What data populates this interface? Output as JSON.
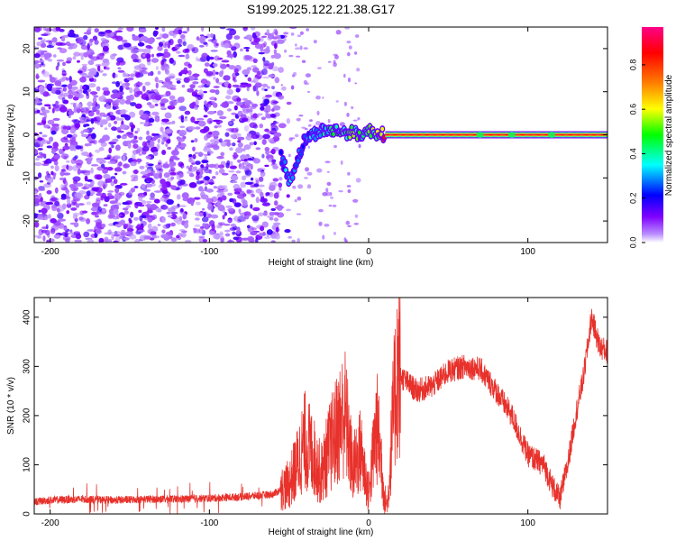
{
  "title": "S199.2025.122.21.38.G17",
  "chart_data": [
    {
      "type": "heatmap",
      "xlabel": "Height of straight line (km)",
      "ylabel": "Frequency (Hz)",
      "xlim": [
        -210,
        150
      ],
      "ylim": [
        -25,
        25
      ],
      "xticks": [
        -200,
        -100,
        0,
        100
      ],
      "yticks": [
        -20,
        -10,
        0,
        10,
        20
      ],
      "colorbar": {
        "label": "Normalized spectral amplitude",
        "range": [
          0.0,
          0.97
        ],
        "ticks": [
          "0.0",
          "0.2",
          "0.4",
          "0.6",
          "0.8"
        ],
        "tick_values": [
          0.0,
          0.2,
          0.4,
          0.6,
          0.8
        ],
        "colormap": [
          "#ffffff",
          "#7f00ff",
          "#0000ff",
          "#00ffff",
          "#00ff00",
          "#ffff00",
          "#ff7f00",
          "#ff0000",
          "#ff00aa"
        ]
      },
      "noise_region_x": [
        -210,
        -55
      ],
      "signal_track": {
        "x": [
          -55,
          -52,
          -50,
          -48,
          -45,
          -42,
          -40,
          -35,
          -30,
          -25,
          -20,
          -15,
          -10,
          -5,
          0,
          5,
          10,
          20,
          40,
          60,
          80,
          100,
          120,
          150
        ],
        "frequency": [
          -5,
          -8,
          -11,
          -9,
          -6,
          -3,
          -1,
          0,
          1,
          1,
          1,
          0.5,
          0.5,
          0,
          1,
          0.5,
          0,
          0,
          0,
          0,
          0,
          0,
          0,
          0
        ],
        "amplitude": [
          0.3,
          0.35,
          0.35,
          0.3,
          0.3,
          0.3,
          0.3,
          0.35,
          0.4,
          0.45,
          0.5,
          0.55,
          0.55,
          0.5,
          0.55,
          0.6,
          0.9,
          0.9,
          0.9,
          0.9,
          0.9,
          0.9,
          0.9,
          0.9
        ]
      }
    },
    {
      "type": "line",
      "xlabel": "Height of straight line (km)",
      "ylabel": "SNR (10 * v/v)",
      "xlim": [
        -210,
        150
      ],
      "ylim": [
        0,
        440
      ],
      "xticks": [
        -200,
        -100,
        0,
        100
      ],
      "yticks": [
        0,
        100,
        200,
        300,
        400
      ],
      "color": "#e8312b",
      "series": [
        {
          "x": [
            -210,
            -200,
            -180,
            -160,
            -140,
            -120,
            -100,
            -80,
            -60,
            -50,
            -45,
            -40,
            -35,
            -30,
            -25,
            -20,
            -15,
            -10,
            -5,
            0,
            5,
            8,
            10,
            12,
            15,
            18,
            20,
            30,
            40,
            50,
            60,
            70,
            80,
            90,
            100,
            105,
            110,
            115,
            120,
            125,
            130,
            135,
            140,
            145,
            150
          ],
          "y": [
            25,
            28,
            30,
            28,
            30,
            30,
            32,
            35,
            40,
            60,
            100,
            150,
            120,
            80,
            130,
            170,
            210,
            90,
            130,
            40,
            180,
            110,
            30,
            20,
            180,
            300,
            280,
            250,
            260,
            290,
            300,
            295,
            250,
            200,
            120,
            110,
            100,
            60,
            30,
            100,
            200,
            280,
            400,
            340,
            330
          ]
        }
      ]
    }
  ]
}
